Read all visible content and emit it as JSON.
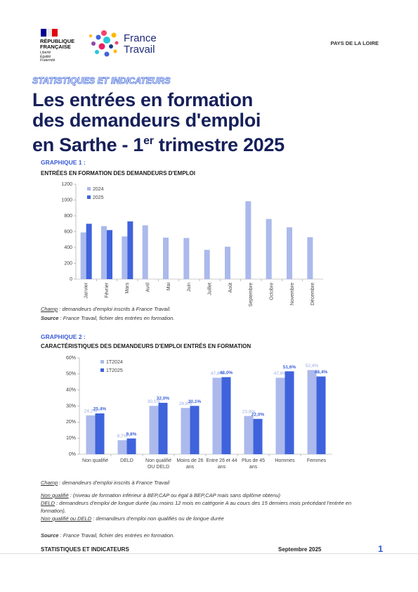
{
  "header": {
    "republic": "RÉPUBLIQUE FRANÇAISE",
    "motto": [
      "Liberté",
      "Égalité",
      "Fraternité"
    ],
    "brand": [
      "France",
      "Travail"
    ],
    "region": "PAYS DE LA LOIRE",
    "kicker": "STATISTIQUES ET INDICATEURS",
    "title_lines": [
      "Les entrées en formation",
      "des demandeurs d'emploi"
    ],
    "title_last": "en Sarthe - 1",
    "title_sup": "er",
    "title_end": " trimestre 2025"
  },
  "chart_data": [
    {
      "type": "bar",
      "heading": "GRAPHIQUE 1 :",
      "title": "ENTRÉES EN FORMATION DES DEMANDEURS D'EMPLOI",
      "categories": [
        "Janvier",
        "Février",
        "Mars",
        "Avril",
        "Mai",
        "Juin",
        "Juillet",
        "Août",
        "Septembre",
        "Octobre",
        "Novembre",
        "Décembre"
      ],
      "series": [
        {
          "name": "2024",
          "color": "#abb9ec",
          "values": [
            590,
            670,
            540,
            680,
            525,
            520,
            370,
            410,
            985,
            760,
            655,
            530
          ]
        },
        {
          "name": "2025",
          "color": "#3f63dc",
          "values": [
            700,
            620,
            730,
            null,
            null,
            null,
            null,
            null,
            null,
            null,
            null,
            null
          ]
        }
      ],
      "ylim": [
        0,
        1200
      ],
      "yticks": [
        0,
        200,
        400,
        600,
        800,
        1000,
        1200
      ],
      "grid": false,
      "legend": "top-left",
      "champ_label": "Champ",
      "champ_text": " : demandeurs d'emploi inscrits à France Travail.",
      "source_label": "Source",
      "source_text": " : France Travail, fichier des entrées en formation."
    },
    {
      "type": "bar",
      "heading": "GRAPHIQUE 2 :",
      "title": "CARACTÉRISTIQUES DES DEMANDEURS D'EMPLOI ENTRÉS EN FORMATION",
      "categories": [
        "Non qualifié",
        "DELD",
        "Non qualifié OU DELD",
        "Moins de 26 ans",
        "Entre 26 et 44 ans",
        "Plus de 45 ans",
        "Hommes",
        "Femmes"
      ],
      "series": [
        {
          "name": "1T2024",
          "color": "#abb9ec",
          "values": [
            24.2,
            8.7,
            30.1,
            28.8,
            47.6,
            23.8,
            47.6,
            52.4
          ],
          "value_labels": [
            "24,2%",
            "8,7%",
            "30,1%",
            "28,8%",
            "47,6%",
            "23,8%",
            "47,6%",
            "52,4%"
          ]
        },
        {
          "name": "1T2025",
          "color": "#3f63dc",
          "values": [
            25.4,
            9.8,
            32.0,
            30.1,
            48.0,
            22.0,
            51.6,
            48.4
          ],
          "value_labels": [
            "25,4%",
            "9,8%",
            "32,0%",
            "30,1%",
            "48,0%",
            "22,0%",
            "51,6%",
            "48,4%"
          ]
        }
      ],
      "ylim": [
        0,
        60
      ],
      "yticks": [
        {
          "value": 0,
          "label": "0%"
        },
        {
          "value": 10,
          "label": "10%"
        },
        {
          "value": 20,
          "label": "20%"
        },
        {
          "value": 30,
          "label": "30%"
        },
        {
          "value": 40,
          "label": "40%"
        },
        {
          "value": 50,
          "label": "50%"
        },
        {
          "value": 60,
          "label": "60%"
        }
      ],
      "grid": false,
      "legend": "top-left",
      "champ_label": "Champ",
      "champ_text": " : demandeurs d'emploi inscrits à France Travail",
      "definitions": [
        {
          "term": "Non qualifié",
          "text": " : (niveau de formation inférieur à BEP,CAP ou égal à BEP,CAP mais sans diplôme obtenu)"
        },
        {
          "term": "DELD",
          "text": " : demandeurs d'emploi de longue durée (au moins 12 mois en catégorie A au cours des 15 derniers mois précédant l'entrée en formation)."
        },
        {
          "term": "Non qualifié ou DELD",
          "text": " : demandeurs d'emploi non qualifiés ou de longue durée"
        }
      ],
      "source_label": "Source",
      "source_text": " : France Travail, fichier des entrées en formation."
    }
  ],
  "footer": {
    "left": "STATISTIQUES ET INDICATEURS",
    "date": "Septembre 2025",
    "page": "1"
  }
}
